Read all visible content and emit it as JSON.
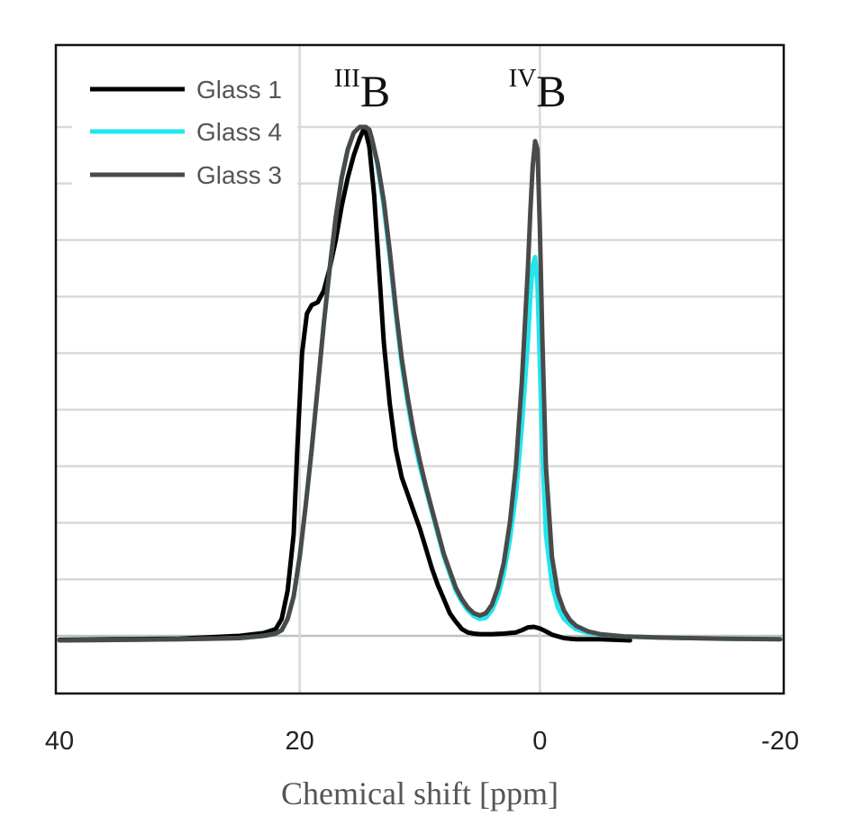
{
  "chart_data": {
    "type": "line",
    "xlabel": "Chemical shift [ppm]",
    "ylabel": "",
    "x_reversed": true,
    "xlim": [
      40,
      -20
    ],
    "ylim": [
      -0.1,
      1.0
    ],
    "x_ticks": [
      "40",
      "20",
      "0",
      "-20"
    ],
    "x_tick_values": [
      40,
      20,
      0,
      -20
    ],
    "y_gridlines": [
      0,
      0.1,
      0.2,
      0.3,
      0.4,
      0.5,
      0.6,
      0.7,
      0.8,
      0.9
    ],
    "vertical_gridlines_at": [
      20,
      0
    ],
    "grid": true,
    "legend_position": "top-left",
    "peak_labels": [
      {
        "sup": "III",
        "main": "B",
        "x": 14.8
      },
      {
        "sup": "IV",
        "main": "B",
        "x": 0.2
      }
    ],
    "series": [
      {
        "name": "Glass 1",
        "color": "#000000",
        "x": [
          40,
          30,
          25,
          23,
          22,
          21.5,
          21,
          20.5,
          20.2,
          19.8,
          19.4,
          19,
          18.5,
          18,
          17.5,
          17,
          16.5,
          16,
          15.5,
          15,
          14.6,
          14.2,
          13.8,
          13.4,
          13,
          12.5,
          12,
          11.5,
          11,
          10.5,
          10,
          9.5,
          9,
          8.5,
          8,
          7.5,
          7,
          6.5,
          6,
          5.5,
          5,
          4,
          3,
          2,
          1.5,
          1,
          0.5,
          0,
          -0.5,
          -1,
          -2,
          -3,
          -5,
          -7.5
        ],
        "y": [
          -0.007,
          -0.005,
          0,
          0.005,
          0.012,
          0.03,
          0.08,
          0.18,
          0.33,
          0.5,
          0.57,
          0.585,
          0.59,
          0.61,
          0.65,
          0.7,
          0.76,
          0.81,
          0.85,
          0.88,
          0.9,
          0.865,
          0.78,
          0.65,
          0.52,
          0.41,
          0.33,
          0.28,
          0.25,
          0.22,
          0.19,
          0.155,
          0.12,
          0.09,
          0.065,
          0.04,
          0.025,
          0.012,
          0.006,
          0.004,
          0.003,
          0.003,
          0.004,
          0.006,
          0.01,
          0.015,
          0.016,
          0.013,
          0.008,
          0.002,
          -0.004,
          -0.006,
          -0.006,
          -0.008
        ]
      },
      {
        "name": "Glass 4",
        "color": "#22e5ee",
        "x": [
          40,
          30,
          25,
          23,
          22,
          21.5,
          21,
          20.5,
          20,
          19.5,
          19,
          18.5,
          18,
          17.5,
          17,
          16.5,
          16,
          15.5,
          15,
          14.5,
          14.2,
          14,
          13.5,
          13,
          12.5,
          12,
          11.5,
          11,
          10.5,
          10,
          9.5,
          9,
          8.5,
          8,
          7.5,
          7,
          6.5,
          6,
          5.5,
          5,
          4.5,
          4,
          3.5,
          3,
          2.5,
          2,
          1.5,
          1,
          0.8,
          0.6,
          0.4,
          0.2,
          0,
          -0.2,
          -0.5,
          -1,
          -1.5,
          -2,
          -2.5,
          -3,
          -4,
          -5,
          -7,
          -10,
          -15,
          -20
        ],
        "y": [
          -0.008,
          -0.006,
          -0.004,
          0,
          0.004,
          0.01,
          0.03,
          0.07,
          0.14,
          0.23,
          0.33,
          0.44,
          0.55,
          0.65,
          0.74,
          0.81,
          0.86,
          0.89,
          0.9,
          0.9,
          0.895,
          0.88,
          0.83,
          0.76,
          0.67,
          0.57,
          0.48,
          0.41,
          0.35,
          0.3,
          0.26,
          0.22,
          0.18,
          0.14,
          0.11,
          0.08,
          0.06,
          0.045,
          0.035,
          0.03,
          0.032,
          0.045,
          0.07,
          0.11,
          0.17,
          0.25,
          0.37,
          0.52,
          0.6,
          0.655,
          0.67,
          0.62,
          0.48,
          0.33,
          0.18,
          0.09,
          0.05,
          0.03,
          0.02,
          0.012,
          0.005,
          0.002,
          -0.001,
          -0.003,
          -0.005,
          -0.006
        ]
      },
      {
        "name": "Glass 3",
        "color": "#4a4a4a",
        "x": [
          40,
          30,
          25,
          23,
          22,
          21.5,
          21,
          20.5,
          20,
          19.5,
          19,
          18.5,
          18,
          17.5,
          17,
          16.5,
          16,
          15.5,
          15,
          14.5,
          14.2,
          14,
          13.5,
          13,
          12.5,
          12,
          11.5,
          11,
          10.5,
          10,
          9.5,
          9,
          8.5,
          8,
          7.5,
          7,
          6.5,
          6,
          5.5,
          5,
          4.5,
          4,
          3.5,
          3,
          2.5,
          2,
          1.5,
          1,
          0.8,
          0.6,
          0.4,
          0.2,
          0,
          -0.2,
          -0.5,
          -1,
          -1.5,
          -2,
          -2.5,
          -3,
          -4,
          -5,
          -7,
          -10,
          -15,
          -20
        ],
        "y": [
          -0.008,
          -0.006,
          -0.004,
          0,
          0.004,
          0.01,
          0.03,
          0.07,
          0.14,
          0.23,
          0.33,
          0.44,
          0.55,
          0.65,
          0.74,
          0.81,
          0.86,
          0.89,
          0.9,
          0.9,
          0.895,
          0.88,
          0.835,
          0.77,
          0.68,
          0.58,
          0.49,
          0.42,
          0.36,
          0.31,
          0.265,
          0.225,
          0.185,
          0.145,
          0.115,
          0.085,
          0.065,
          0.05,
          0.04,
          0.036,
          0.04,
          0.055,
          0.085,
          0.13,
          0.2,
          0.3,
          0.45,
          0.65,
          0.75,
          0.83,
          0.875,
          0.86,
          0.72,
          0.53,
          0.3,
          0.14,
          0.075,
          0.045,
          0.028,
          0.018,
          0.008,
          0.003,
          -0.001,
          -0.003,
          -0.005,
          -0.006
        ]
      }
    ]
  }
}
